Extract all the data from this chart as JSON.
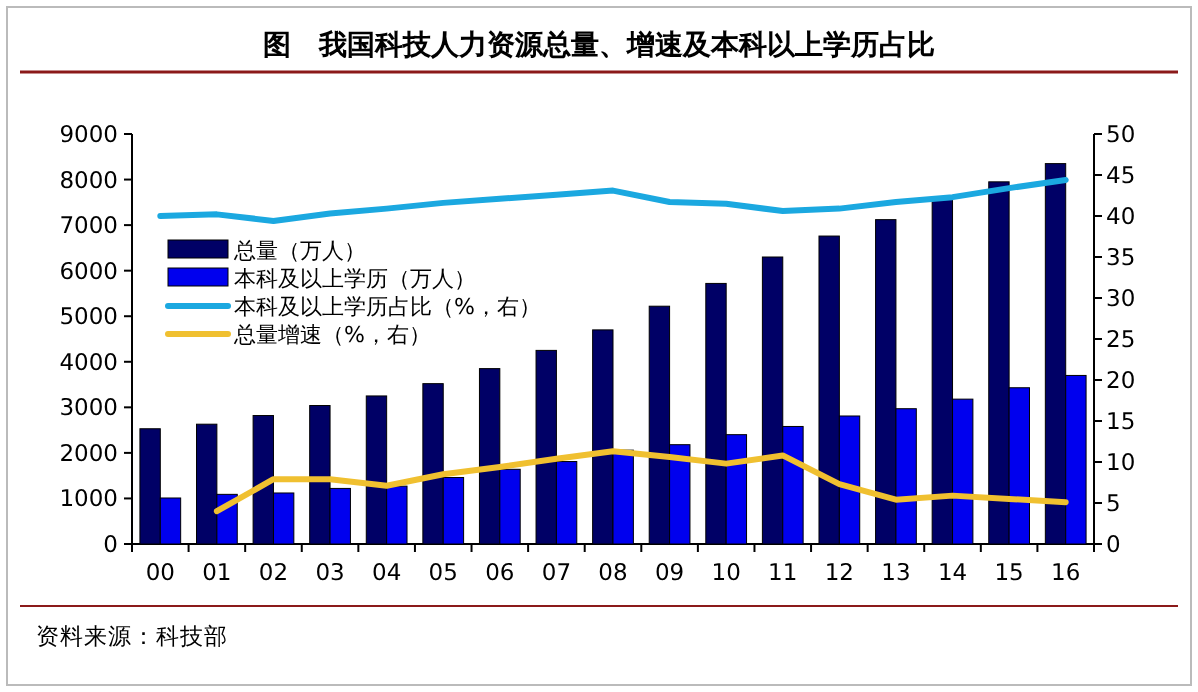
{
  "chart_data": {
    "type": "bar",
    "title": "图　我国科技人力资源总量、增速及本科以上学历占比",
    "categories": [
      "00",
      "01",
      "02",
      "03",
      "04",
      "05",
      "06",
      "07",
      "08",
      "09",
      "10",
      "11",
      "12",
      "13",
      "14",
      "15",
      "16"
    ],
    "series": [
      {
        "name": "总量（万人）",
        "color": "#000066",
        "values": [
          2530,
          2630,
          2820,
          3040,
          3250,
          3520,
          3850,
          4250,
          4700,
          5220,
          5720,
          6300,
          6760,
          7120,
          7580,
          7950,
          8350
        ]
      },
      {
        "name": "本科及以上学历（万人）",
        "color": "#0000ee",
        "values": [
          1010,
          1090,
          1120,
          1220,
          1270,
          1460,
          1640,
          1810,
          2060,
          2180,
          2400,
          2580,
          2810,
          2970,
          3180,
          3430,
          3700
        ]
      },
      {
        "name": "本科及以上学历占比（%，右）",
        "type": "line",
        "axis": "y2",
        "color": "#1ba8e0",
        "values": [
          40.0,
          40.2,
          39.4,
          40.3,
          40.9,
          41.6,
          42.1,
          42.6,
          43.1,
          41.7,
          41.5,
          40.6,
          40.9,
          41.7,
          42.3,
          43.4,
          44.4
        ]
      },
      {
        "name": "总量增速（%，右）",
        "type": "line",
        "axis": "y2",
        "color": "#f0c030",
        "values": [
          null,
          4.0,
          7.9,
          7.9,
          7.1,
          8.5,
          9.4,
          10.4,
          11.3,
          10.6,
          9.8,
          10.8,
          7.3,
          5.4,
          5.9,
          5.5,
          5.1
        ]
      }
    ],
    "ylim": [
      0,
      9000
    ],
    "yticks": [
      0,
      1000,
      2000,
      3000,
      4000,
      5000,
      6000,
      7000,
      8000,
      9000
    ],
    "y2lim": [
      0,
      50
    ],
    "y2ticks": [
      0,
      5,
      10,
      15,
      20,
      25,
      30,
      35,
      40,
      45,
      50
    ],
    "legend": "top left",
    "annotations": [
      "资料来源：科技部"
    ]
  }
}
